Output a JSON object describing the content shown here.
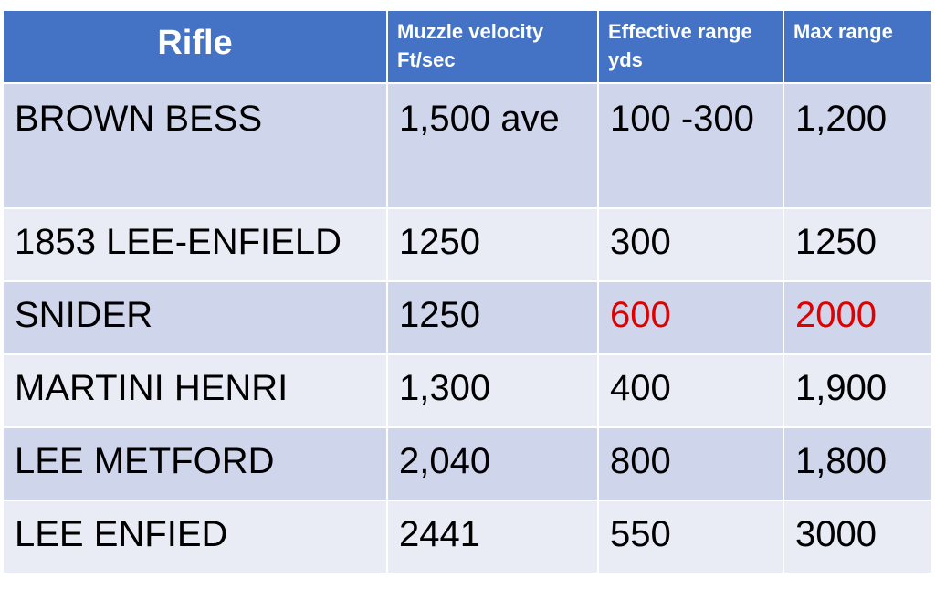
{
  "table": {
    "headers": [
      [
        "Rifle"
      ],
      [
        "Muzzle velocity",
        "Ft/sec"
      ],
      [
        "Effective range",
        "yds"
      ],
      [
        "Max range"
      ]
    ],
    "rows": [
      [
        "BROWN BESS",
        "1,500 ave",
        "100 -300",
        "1,200"
      ],
      [
        "1853 LEE-ENFIELD",
        "1250",
        "300",
        "1250"
      ],
      [
        "SNIDER",
        "1250",
        "600",
        "2000"
      ],
      [
        "MARTINI HENRI",
        "1,300",
        "400",
        "1,900"
      ],
      [
        "LEE METFORD",
        "2,040",
        "800",
        "1,800"
      ],
      [
        "LEE ENFIED",
        "2441",
        "550",
        "3000"
      ]
    ],
    "highlight_color": "#e00000",
    "highlighted_cells": [
      [
        2,
        2
      ],
      [
        2,
        3
      ]
    ],
    "header_color": "#4472c4",
    "row_colors": [
      "#cfd5ea",
      "#e9ebf5"
    ]
  }
}
